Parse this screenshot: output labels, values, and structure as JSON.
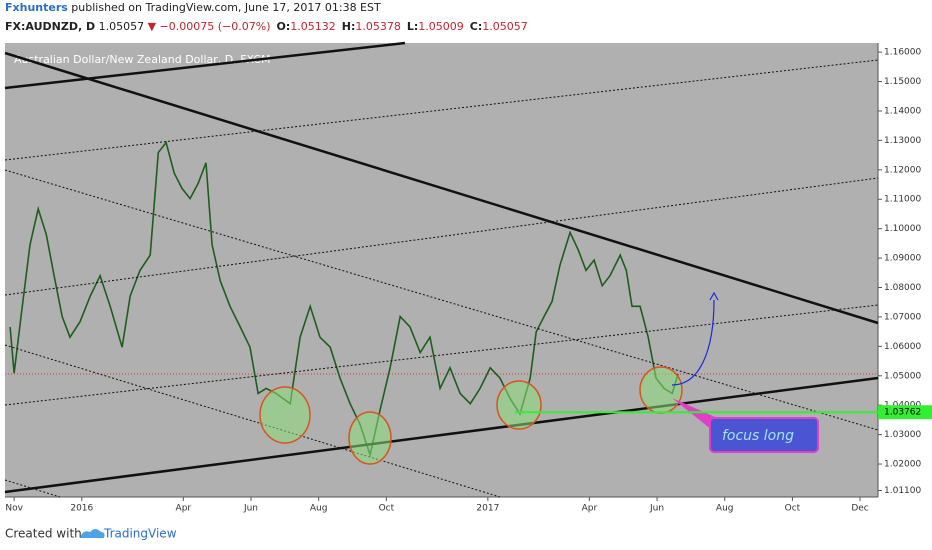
{
  "chart_data": {
    "type": "line",
    "publisher": "Fxhunters",
    "published_text": "published on TradingView.com, June 17, 2017 01:38 EST",
    "symbol": "FX:AUDNZD, D",
    "last": "1.05057",
    "change": "▼ −0.00075 (−0.07%)",
    "ohlc": [
      {
        "label": "O:",
        "value": "1.05132"
      },
      {
        "label": "H:",
        "value": "1.05378"
      },
      {
        "label": "L:",
        "value": "1.05009"
      },
      {
        "label": "C:",
        "value": "1.05057"
      }
    ],
    "title": "Australian Dollar/New Zealand Dollar, D, FXCM",
    "color": "#1d5e1d",
    "x": [
      -0.12,
      0.0,
      0.24,
      0.47,
      0.71,
      0.95,
      1.18,
      1.42,
      1.65,
      1.95,
      2.25,
      2.54,
      2.84,
      3.19,
      3.43,
      3.72,
      4.02,
      4.26,
      4.49,
      4.73,
      4.96,
      5.2,
      5.44,
      5.67,
      5.85,
      6.09,
      6.38,
      6.68,
      6.97,
      7.21,
      7.45,
      7.74,
      8.16,
      8.45,
      8.75,
      9.04,
      9.34,
      9.63,
      9.93,
      10.22,
      10.52,
      10.82,
      11.11,
      11.41,
      11.7,
      12.0,
      12.29,
      12.59,
      12.88,
      13.18,
      13.48,
      13.77,
      14.07,
      14.36,
      14.66,
      14.95,
      15.25,
      15.43,
      15.66,
      15.9,
      16.13,
      16.43,
      16.67,
      16.9,
      17.14,
      17.38,
      17.61,
      17.91,
      18.09,
      18.26,
      18.5,
      18.74,
      18.97,
      19.21,
      19.45,
      19.62
    ],
    "values": [
      1.0666,
      1.0509,
      1.0736,
      1.0945,
      1.1067,
      1.098,
      1.084,
      1.0701,
      1.0631,
      1.0684,
      1.0771,
      1.084,
      1.0736,
      1.0597,
      1.0771,
      1.0858,
      1.091,
      1.1259,
      1.1293,
      1.1189,
      1.1137,
      1.1102,
      1.1154,
      1.1224,
      1.0945,
      1.0823,
      1.0736,
      1.0666,
      1.0597,
      1.044,
      1.0457,
      1.044,
      1.0405,
      1.0631,
      1.0736,
      1.0631,
      1.0597,
      1.0492,
      1.0405,
      1.0335,
      1.0231,
      1.0387,
      1.0527,
      1.0701,
      1.0666,
      1.0579,
      1.0631,
      1.0457,
      1.0527,
      1.044,
      1.0405,
      1.0457,
      1.0527,
      1.0492,
      1.0422,
      1.037,
      1.0492,
      1.0649,
      1.0701,
      1.0753,
      1.0875,
      1.0987,
      1.0928,
      1.0858,
      1.0893,
      1.0806,
      1.084,
      1.091,
      1.0858,
      1.0736,
      1.0736,
      1.0631,
      1.0492,
      1.0457,
      1.044,
      1.0506
    ],
    "xlim": [
      -0.27,
      25.53
    ],
    "xticks": [
      {
        "value": 0,
        "label": "Nov"
      },
      {
        "value": 2,
        "label": "2016"
      },
      {
        "value": 5,
        "label": "Apr"
      },
      {
        "value": 7,
        "label": "Jun"
      },
      {
        "value": 9,
        "label": "Aug"
      },
      {
        "value": 11,
        "label": "Oct"
      },
      {
        "value": 14,
        "label": "2017"
      },
      {
        "value": 17,
        "label": "Apr"
      },
      {
        "value": 19,
        "label": "Jun"
      },
      {
        "value": 21,
        "label": "Aug"
      },
      {
        "value": 23,
        "label": "Oct"
      },
      {
        "value": 25,
        "label": "Dec"
      }
    ],
    "ylim": [
      1.0088,
      1.1631
    ],
    "yticks": [
      {
        "value": 1.16,
        "label": "1.16000"
      },
      {
        "value": 1.15,
        "label": "1.15000"
      },
      {
        "value": 1.14,
        "label": "1.14000"
      },
      {
        "value": 1.13,
        "label": "1.13000"
      },
      {
        "value": 1.12,
        "label": "1.12000"
      },
      {
        "value": 1.11,
        "label": "1.11000"
      },
      {
        "value": 1.1,
        "label": "1.10000"
      },
      {
        "value": 1.09,
        "label": "1.09000"
      },
      {
        "value": 1.08,
        "label": "1.08000"
      },
      {
        "value": 1.07,
        "label": "1.07000"
      },
      {
        "value": 1.06,
        "label": "1.06000"
      },
      {
        "value": 1.05,
        "label": "1.05000"
      },
      {
        "value": 1.04,
        "label": "1.04000"
      },
      {
        "value": 1.03,
        "label": "1.03000"
      },
      {
        "value": 1.02,
        "label": "1.02000"
      },
      {
        "value": 1.011,
        "label": "1.01100"
      }
    ],
    "price_line": 1.03762,
    "annotation": "focus long",
    "footer": {
      "created": "Created with",
      "brand": "TradingView"
    }
  }
}
